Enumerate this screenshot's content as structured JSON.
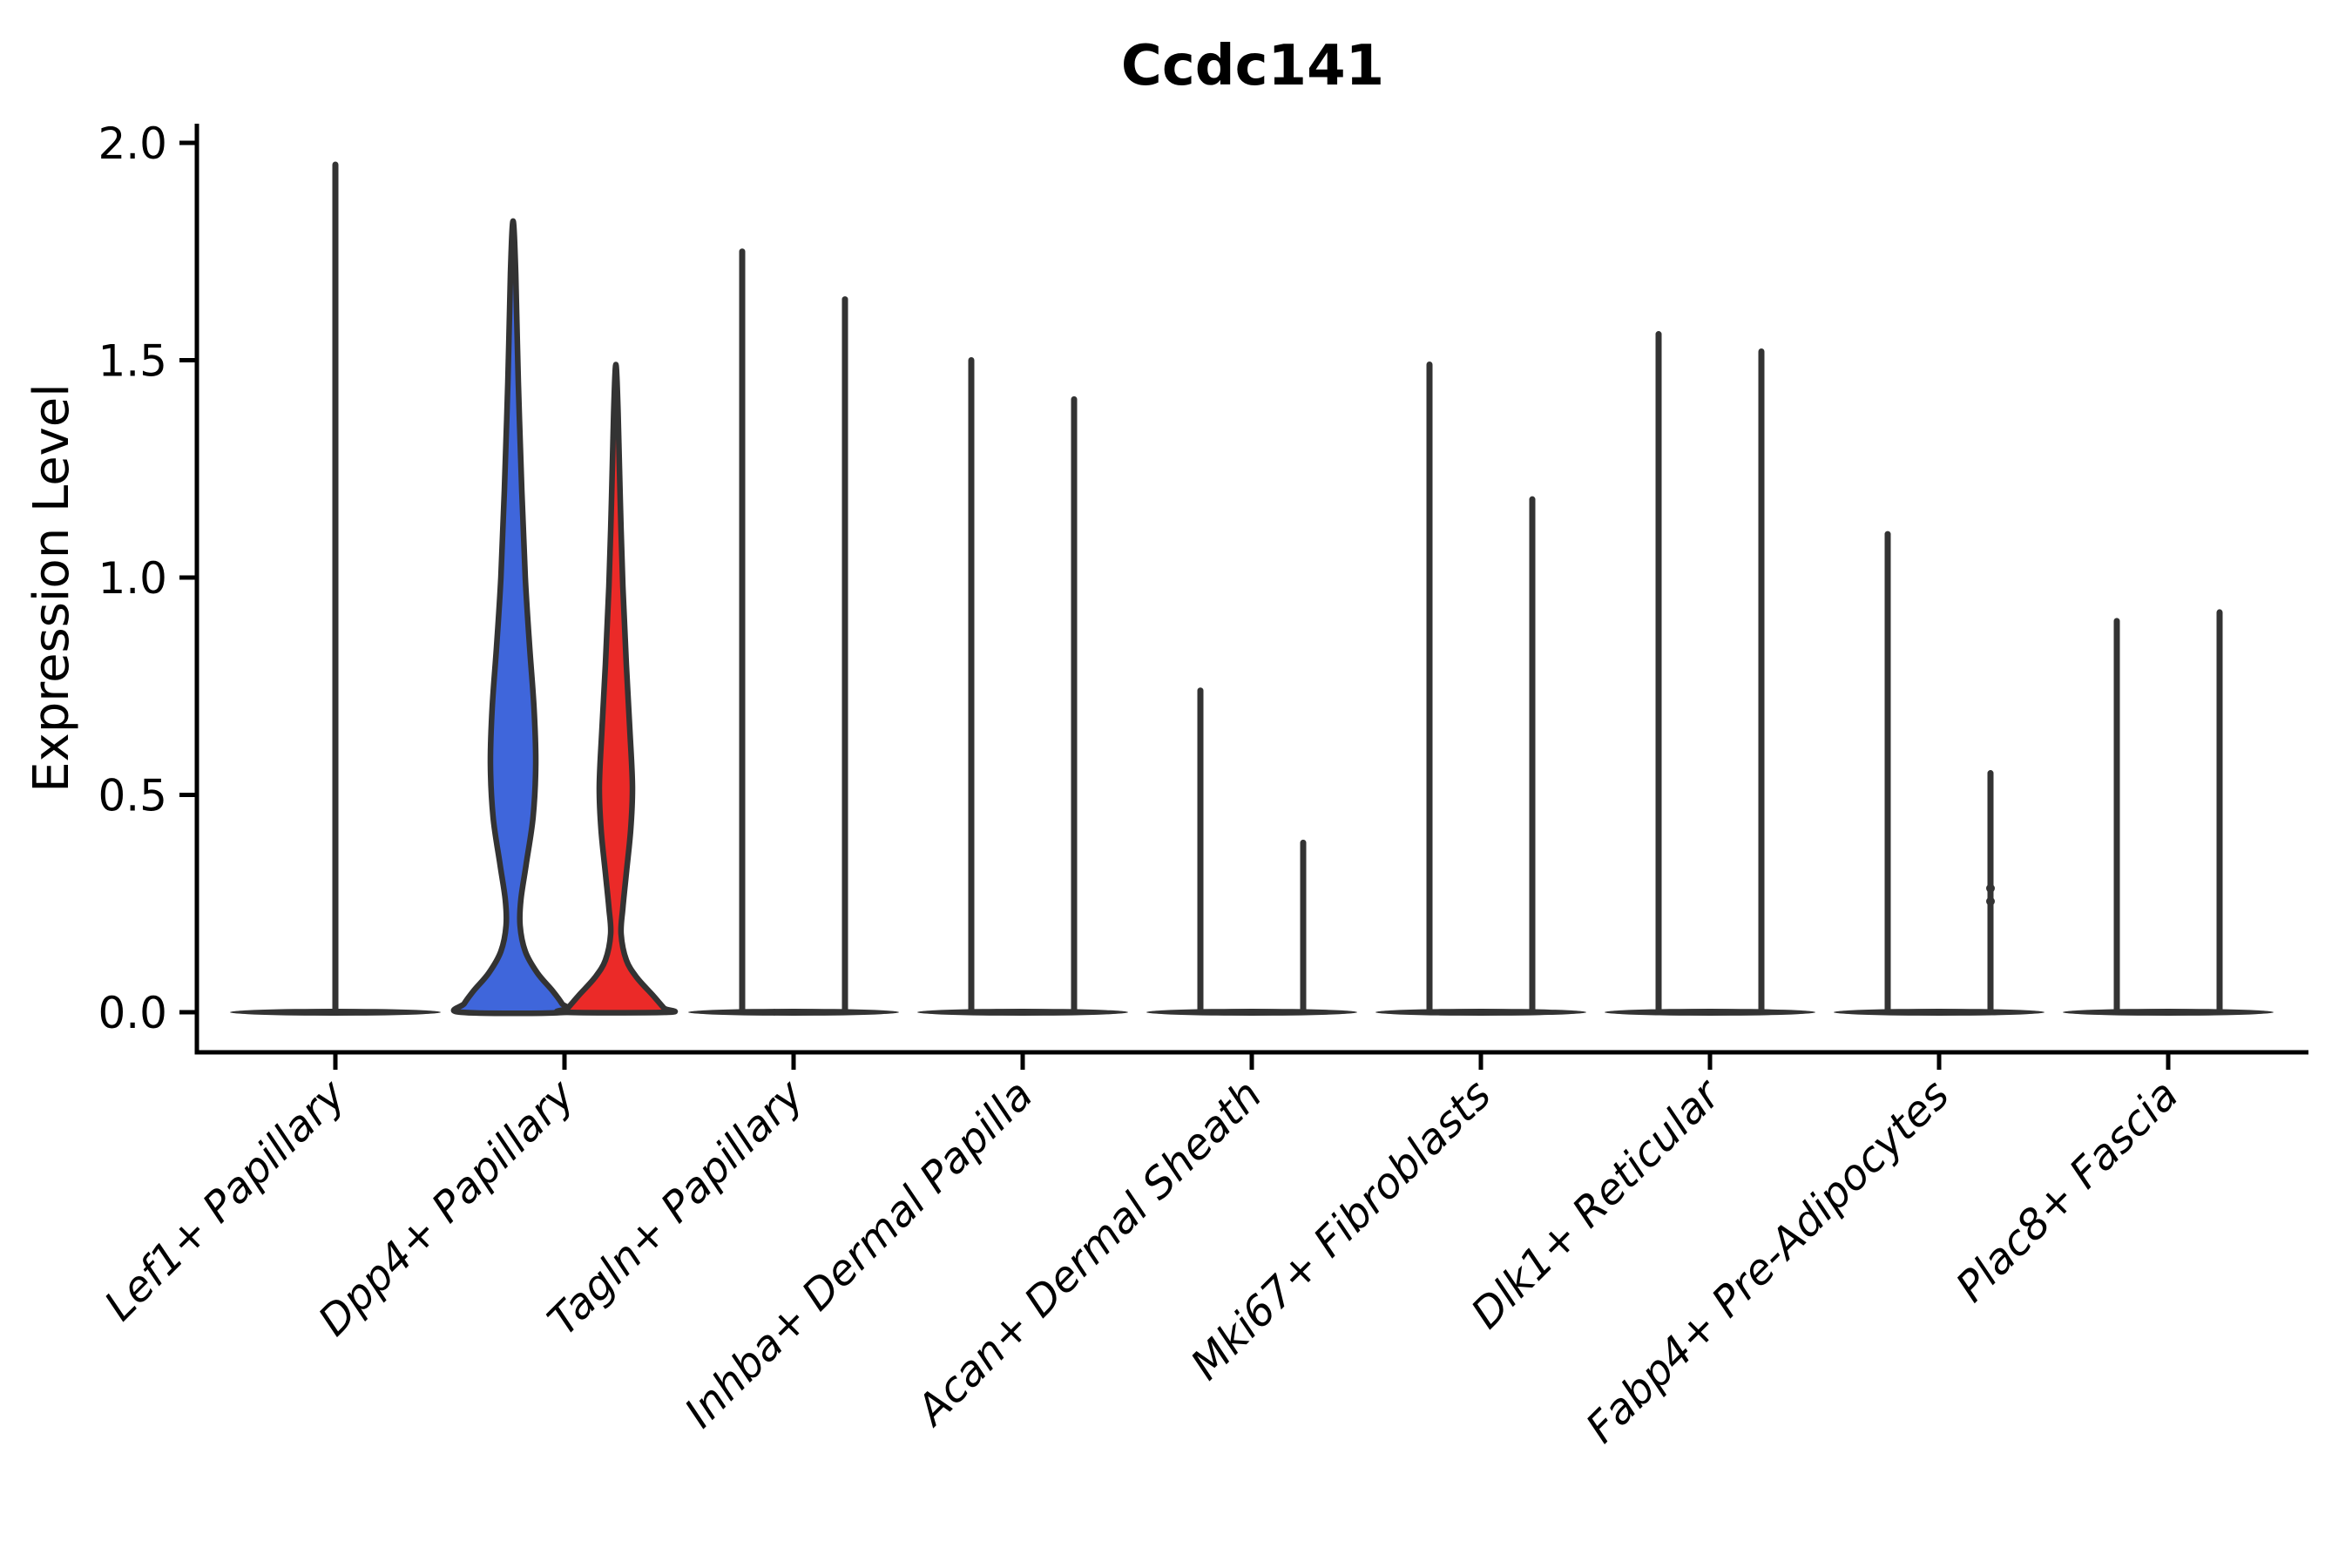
{
  "figure": {
    "background": "#ffffff"
  },
  "chart_data": {
    "type": "violin",
    "title": "Ccdc141",
    "ylabel": "Expression Level",
    "xlabel": "",
    "ylim": [
      0,
      2.05
    ],
    "yticks": [
      2.0,
      1.5,
      1.0,
      0.5,
      0.0
    ],
    "ytick_labels": [
      "2.0",
      "1.5",
      "1.0",
      "0.5",
      "0.0"
    ],
    "grid": false,
    "legend": "none",
    "x_label_rotation_deg": 45,
    "style": {
      "axis_color": "#000000",
      "outline_color": "#333333",
      "text_color": "#000000",
      "blue_fill": "#3F66DB",
      "red_fill": "#EB2A28"
    },
    "categories": [
      "Lef1+ Papillary",
      "Dpp4+ Papillary",
      "Tagln+ Papillary",
      "Inhba+ Dermal Papilla",
      "Acan+ Dermal Sheath",
      "Mki67+ Fibroblasts",
      "Dlk1+ Reticular",
      "Fabp4+ Pre-Adipocytes",
      "Plac8+ Fascia"
    ],
    "violins": [
      {
        "category": "Lef1+ Papillary",
        "parts": [
          {
            "side": "center",
            "style": "spike",
            "max": 1.95,
            "base_halfwidth": 121
          }
        ]
      },
      {
        "category": "Dpp4+ Papillary",
        "parts": [
          {
            "side": "left",
            "style": "filled",
            "max": 1.82,
            "fill": "#3F66DB",
            "profile": [
              [
                1.82,
                0
              ],
              [
                1.7,
                3
              ],
              [
                1.45,
                6
              ],
              [
                1.2,
                10
              ],
              [
                1.0,
                14
              ],
              [
                0.84,
                19
              ],
              [
                0.7,
                24
              ],
              [
                0.57,
                26
              ],
              [
                0.45,
                23
              ],
              [
                0.34,
                15
              ],
              [
                0.26,
                9
              ],
              [
                0.2,
                8
              ],
              [
                0.14,
                14
              ],
              [
                0.09,
                28
              ],
              [
                0.05,
                45
              ],
              [
                0.02,
                56
              ],
              [
                0.0,
                60
              ]
            ]
          },
          {
            "side": "right",
            "style": "filled",
            "max": 1.49,
            "fill": "#EB2A28",
            "profile": [
              [
                1.49,
                0
              ],
              [
                1.38,
                2.5
              ],
              [
                1.18,
                5
              ],
              [
                0.98,
                8
              ],
              [
                0.8,
                12
              ],
              [
                0.65,
                16
              ],
              [
                0.52,
                19
              ],
              [
                0.42,
                17
              ],
              [
                0.32,
                12
              ],
              [
                0.24,
                8
              ],
              [
                0.18,
                6
              ],
              [
                0.12,
                12
              ],
              [
                0.08,
                24
              ],
              [
                0.04,
                42
              ],
              [
                0.01,
                55
              ],
              [
                0.0,
                60
              ]
            ]
          }
        ]
      },
      {
        "category": "Tagln+ Papillary",
        "parts": [
          {
            "side": "left",
            "style": "spike",
            "max": 1.75,
            "base_halfwidth": 121
          },
          {
            "side": "right",
            "style": "spike",
            "max": 1.64
          }
        ]
      },
      {
        "category": "Inhba+ Dermal Papilla",
        "parts": [
          {
            "side": "left",
            "style": "spike",
            "max": 1.5,
            "base_halfwidth": 121
          },
          {
            "side": "right",
            "style": "spike",
            "max": 1.41
          }
        ]
      },
      {
        "category": "Acan+ Dermal Sheath",
        "parts": [
          {
            "side": "left",
            "style": "spike",
            "max": 0.74,
            "base_halfwidth": 121
          },
          {
            "side": "right",
            "style": "spike",
            "max": 0.39
          }
        ]
      },
      {
        "category": "Mki67+ Fibroblasts",
        "parts": [
          {
            "side": "left",
            "style": "spike",
            "max": 1.49,
            "base_halfwidth": 121
          },
          {
            "side": "right",
            "style": "spike",
            "max": 1.18
          }
        ]
      },
      {
        "category": "Dlk1+ Reticular",
        "parts": [
          {
            "side": "left",
            "style": "spike",
            "max": 1.56,
            "base_halfwidth": 121
          },
          {
            "side": "right",
            "style": "spike",
            "max": 1.52
          }
        ]
      },
      {
        "category": "Fabp4+ Pre-Adipocytes",
        "parts": [
          {
            "side": "left",
            "style": "spike",
            "max": 1.1,
            "base_halfwidth": 121
          },
          {
            "side": "right",
            "style": "spike",
            "max": 0.55,
            "knots": [
              0.285,
              0.255
            ]
          }
        ]
      },
      {
        "category": "Plac8+ Fascia",
        "parts": [
          {
            "side": "left",
            "style": "spike",
            "max": 0.9,
            "base_halfwidth": 121
          },
          {
            "side": "right",
            "style": "spike",
            "max": 0.92
          }
        ]
      }
    ]
  }
}
